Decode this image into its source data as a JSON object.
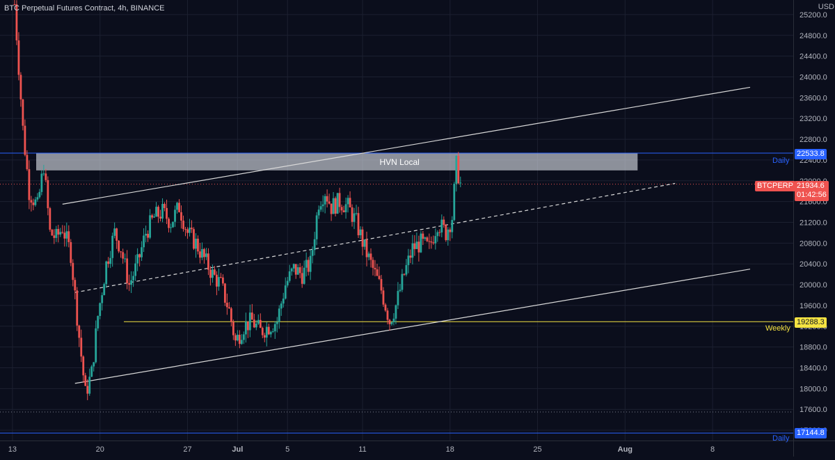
{
  "header": {
    "title": "BTC Perpetual Futures Contract, 4h, BINANCE"
  },
  "axis": {
    "currency": "USD"
  },
  "colors": {
    "up": "#26a69a",
    "down": "#ef5350",
    "grid": "#1c2030",
    "bg": "#0b0e1c",
    "daily": "#2962ff",
    "weekly": "#f5e342",
    "trend": "#d9d9d9"
  },
  "chart_data": {
    "type": "candlestick",
    "title": "BTC Perpetual Futures Contract, 4h, BINANCE",
    "ylim": [
      17000,
      25400
    ],
    "y_ticks": [
      17200,
      17600,
      18000,
      18400,
      18800,
      19200,
      19600,
      20000,
      20400,
      20800,
      21200,
      21600,
      22000,
      22400,
      22800,
      23200,
      23600,
      24000,
      24400,
      24800,
      25200
    ],
    "x_ticks": [
      "13",
      "20",
      "27",
      "Jul",
      "5",
      "11",
      "18",
      "25",
      "Aug",
      "8"
    ],
    "x_range": [
      "2022-06-11",
      "2022-08-11"
    ],
    "path_points": [
      [
        "2022-06-13 04:00",
        25400
      ],
      [
        "2022-06-13 20:00",
        23000
      ],
      [
        "2022-06-14 08:00",
        21800
      ],
      [
        "2022-06-15 00:00",
        21500
      ],
      [
        "2022-06-15 12:00",
        22300
      ],
      [
        "2022-06-16 00:00",
        21000
      ],
      [
        "2022-06-16 12:00",
        20900
      ],
      [
        "2022-06-17 00:00",
        21100
      ],
      [
        "2022-06-17 16:00",
        20600
      ],
      [
        "2022-06-18 08:00",
        19000
      ],
      [
        "2022-06-18 20:00",
        17900
      ],
      [
        "2022-06-19 08:00",
        18300
      ],
      [
        "2022-06-19 20:00",
        19400
      ],
      [
        "2022-06-20 12:00",
        20400
      ],
      [
        "2022-06-21 04:00",
        21000
      ],
      [
        "2022-06-21 16:00",
        20700
      ],
      [
        "2022-06-22 08:00",
        20000
      ],
      [
        "2022-06-23 00:00",
        20400
      ],
      [
        "2022-06-23 16:00",
        21000
      ],
      [
        "2022-06-24 08:00",
        21300
      ],
      [
        "2022-06-25 00:00",
        21400
      ],
      [
        "2022-06-25 16:00",
        21200
      ],
      [
        "2022-06-26 08:00",
        21500
      ],
      [
        "2022-06-27 00:00",
        21000
      ],
      [
        "2022-06-27 16:00",
        20800
      ],
      [
        "2022-06-28 08:00",
        20500
      ],
      [
        "2022-06-29 00:00",
        20200
      ],
      [
        "2022-06-29 16:00",
        20000
      ],
      [
        "2022-06-30 08:00",
        19500
      ],
      [
        "2022-06-30 20:00",
        18900
      ],
      [
        "2022-07-01 12:00",
        19200
      ],
      [
        "2022-07-02 04:00",
        19300
      ],
      [
        "2022-07-02 20:00",
        19100
      ],
      [
        "2022-07-03 12:00",
        19200
      ],
      [
        "2022-07-04 04:00",
        19300
      ],
      [
        "2022-07-04 20:00",
        20000
      ],
      [
        "2022-07-05 12:00",
        20300
      ],
      [
        "2022-07-06 04:00",
        20200
      ],
      [
        "2022-07-06 20:00",
        20400
      ],
      [
        "2022-07-07 12:00",
        21600
      ],
      [
        "2022-07-08 00:00",
        21800
      ],
      [
        "2022-07-08 12:00",
        21500
      ],
      [
        "2022-07-09 04:00",
        21600
      ],
      [
        "2022-07-09 20:00",
        21500
      ],
      [
        "2022-07-10 12:00",
        21200
      ],
      [
        "2022-07-11 04:00",
        20700
      ],
      [
        "2022-07-11 20:00",
        20300
      ],
      [
        "2022-07-12 12:00",
        19900
      ],
      [
        "2022-07-13 04:00",
        19300
      ],
      [
        "2022-07-13 16:00",
        19600
      ],
      [
        "2022-07-14 08:00",
        20200
      ],
      [
        "2022-07-15 00:00",
        20700
      ],
      [
        "2022-07-15 16:00",
        20800
      ],
      [
        "2022-07-16 08:00",
        20700
      ],
      [
        "2022-07-17 00:00",
        21200
      ],
      [
        "2022-07-17 16:00",
        21000
      ],
      [
        "2022-07-18 04:00",
        21300
      ],
      [
        "2022-07-18 12:00",
        22300
      ],
      [
        "2022-07-18 20:00",
        21934.6
      ]
    ],
    "levels": [
      {
        "price": 22533.8,
        "label": "Daily",
        "color": "#2962ff"
      },
      {
        "price": 21934.6,
        "label": "BTCPERP",
        "color": "#ef5350"
      },
      {
        "price": 19288.3,
        "label": "Weekly",
        "color": "#f5e342"
      },
      {
        "price": 17144.8,
        "label": "Daily",
        "color": "#2962ff"
      }
    ],
    "zone": {
      "label": "HVN Local",
      "low": 22200,
      "high": 22540,
      "from": "2022-06-11",
      "to": "2022-08-02"
    },
    "channel": {
      "upper": [
        [
          "2022-06-17",
          21550
        ],
        [
          "2022-08-11",
          23800
        ]
      ],
      "lower": [
        [
          "2022-06-18",
          18100
        ],
        [
          "2022-08-11",
          20300
        ]
      ],
      "mid": [
        [
          "2022-06-18",
          19850
        ],
        [
          "2022-08-05",
          21950
        ]
      ]
    }
  },
  "price_tags": {
    "daily_upper": "22533.8",
    "current_symbol": "BTCPERP",
    "current_price": "21934.6",
    "countdown": "01:42:56",
    "weekly": "19288.3",
    "daily_lower": "17144.8"
  },
  "notes": {
    "daily_upper": "Daily",
    "weekly": "Weekly",
    "daily_lower": "Daily",
    "zone": "HVN Local"
  }
}
